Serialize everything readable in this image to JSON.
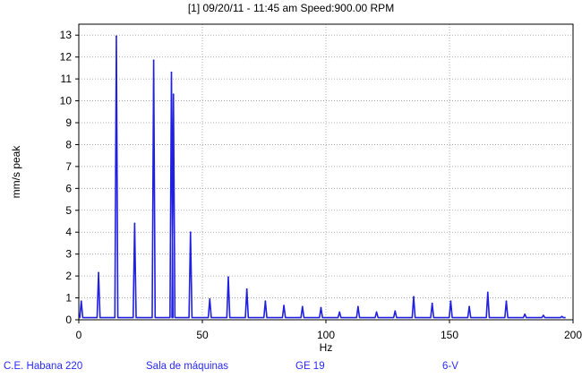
{
  "chart_data": {
    "type": "line",
    "title": "[1] 09/20/11 - 11:45 am Speed:900.00  RPM",
    "xlabel": "Hz",
    "ylabel": "mm/s  peak",
    "xlim": [
      0,
      200
    ],
    "ylim": [
      0,
      13.5
    ],
    "x_ticks": [
      0,
      50,
      100,
      150,
      200
    ],
    "y_ticks": [
      0,
      1,
      2,
      3,
      4,
      5,
      6,
      7,
      8,
      9,
      10,
      11,
      12,
      13
    ],
    "grid": true,
    "line_color": "#2020e0",
    "baseline": 0.1,
    "peaks": [
      {
        "x": 1.0,
        "y": 0.85
      },
      {
        "x": 8.0,
        "y": 2.15
      },
      {
        "x": 15.2,
        "y": 12.95
      },
      {
        "x": 22.6,
        "y": 4.4
      },
      {
        "x": 30.3,
        "y": 11.85
      },
      {
        "x": 37.5,
        "y": 11.3
      },
      {
        "x": 38.3,
        "y": 10.3
      },
      {
        "x": 45.2,
        "y": 4.0
      },
      {
        "x": 53.0,
        "y": 0.95
      },
      {
        "x": 60.5,
        "y": 1.95
      },
      {
        "x": 68.0,
        "y": 1.4
      },
      {
        "x": 75.5,
        "y": 0.85
      },
      {
        "x": 83.0,
        "y": 0.65
      },
      {
        "x": 90.5,
        "y": 0.6
      },
      {
        "x": 98.0,
        "y": 0.55
      },
      {
        "x": 105.5,
        "y": 0.35
      },
      {
        "x": 113.0,
        "y": 0.6
      },
      {
        "x": 120.5,
        "y": 0.35
      },
      {
        "x": 128.0,
        "y": 0.4
      },
      {
        "x": 135.5,
        "y": 1.05
      },
      {
        "x": 143.0,
        "y": 0.75
      },
      {
        "x": 150.5,
        "y": 0.85
      },
      {
        "x": 158.0,
        "y": 0.6
      },
      {
        "x": 165.5,
        "y": 1.25
      },
      {
        "x": 173.0,
        "y": 0.85
      },
      {
        "x": 180.5,
        "y": 0.25
      },
      {
        "x": 188.0,
        "y": 0.2
      },
      {
        "x": 195.5,
        "y": 0.15
      }
    ]
  },
  "footer": {
    "site": "C.E. Habana 220",
    "location": "Sala de máquinas",
    "unit": "GE 19",
    "point": "6-V"
  }
}
